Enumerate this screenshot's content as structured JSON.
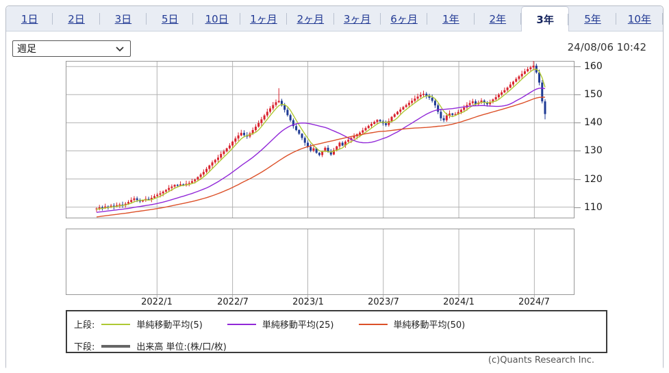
{
  "tabs": {
    "active_index": 11,
    "items": [
      {
        "label": "1日"
      },
      {
        "label": "2日"
      },
      {
        "label": "3日"
      },
      {
        "label": "5日"
      },
      {
        "label": "10日"
      },
      {
        "label": "1ヶ月"
      },
      {
        "label": "2ヶ月"
      },
      {
        "label": "3ヶ月"
      },
      {
        "label": "6ヶ月"
      },
      {
        "label": "1年"
      },
      {
        "label": "2年"
      },
      {
        "label": "3年"
      },
      {
        "label": "5年"
      },
      {
        "label": "10年"
      }
    ]
  },
  "toolbar": {
    "timeframe": "週足",
    "timestamp": "24/08/06 10:42"
  },
  "chart_data": {
    "type": "candlestick",
    "title": "",
    "x_ticks": [
      "2022/1",
      "2022/7",
      "2023/1",
      "2023/7",
      "2024/1",
      "2024/7"
    ],
    "x_tick_weeks": [
      20.9,
      47.0,
      73.0,
      99.1,
      125.2,
      151.3
    ],
    "y_ticks": [
      160,
      150,
      140,
      130,
      120,
      110
    ],
    "ylim": [
      106,
      162
    ],
    "grid": true,
    "weeks": 156,
    "closes": [
      109.5,
      109.9,
      109.6,
      110.2,
      110.0,
      110.5,
      110.2,
      110.7,
      110.9,
      110.6,
      111.2,
      111.8,
      112.5,
      113.1,
      112.5,
      112.0,
      112.4,
      112.9,
      112.6,
      113.3,
      113.9,
      114.4,
      114.9,
      115.5,
      116.1,
      116.8,
      117.3,
      117.9,
      117.6,
      118.1,
      117.7,
      118.3,
      118.6,
      119.2,
      119.8,
      120.7,
      121.6,
      122.5,
      123.6,
      124.8,
      125.9,
      126.8,
      127.6,
      128.9,
      129.8,
      130.9,
      131.9,
      133.3,
      134.4,
      135.5,
      136.4,
      135.6,
      135.1,
      136.2,
      137.4,
      138.6,
      139.9,
      141.2,
      142.6,
      143.9,
      145.1,
      146.3,
      147.3,
      147.8,
      146.2,
      144.6,
      142.7,
      140.9,
      138.8,
      137.4,
      136.1,
      134.6,
      132.9,
      131.4,
      130.1,
      130.9,
      129.3,
      128.5,
      129.9,
      131.1,
      129.6,
      128.7,
      130.3,
      131.6,
      132.9,
      131.9,
      133.3,
      133.9,
      134.6,
      135.2,
      135.9,
      136.5,
      137.3,
      138.1,
      138.9,
      139.6,
      140.3,
      141.0,
      140.5,
      139.8,
      139.2,
      140.6,
      142.1,
      143.0,
      143.9,
      144.7,
      145.6,
      146.3,
      147.1,
      147.8,
      148.6,
      149.3,
      149.9,
      150.3,
      149.6,
      148.9,
      147.8,
      146.2,
      143.9,
      141.6,
      140.9,
      142.6,
      143.3,
      142.8,
      143.1,
      143.8,
      144.6,
      145.4,
      146.3,
      147.0,
      147.6,
      146.6,
      147.2,
      147.9,
      147.1,
      146.6,
      147.4,
      148.3,
      149.1,
      150.0,
      150.8,
      151.6,
      152.5,
      153.6,
      154.6,
      155.6,
      156.5,
      157.4,
      158.3,
      159.1,
      159.7,
      160.3,
      157.9,
      154.3,
      147.6,
      143.1
    ],
    "pre_closes": [
      103.2,
      103.4,
      103.3,
      103.6,
      103.8,
      103.7,
      104.0,
      104.2,
      104.1,
      104.4,
      104.6,
      104.5,
      104.8,
      105.0,
      104.9,
      105.2,
      105.4,
      105.3,
      105.6,
      105.8,
      105.7,
      106.0,
      106.2,
      106.1,
      106.4,
      106.6,
      106.5,
      106.8,
      107.0,
      106.9,
      107.2,
      107.4,
      107.3,
      107.6,
      107.8,
      107.7,
      108.0,
      108.2,
      108.1,
      108.4,
      108.5,
      108.4,
      108.7,
      108.8,
      108.7,
      109.0,
      109.1,
      109.0,
      109.2,
      109.3
    ],
    "wick_overrides": [
      {
        "i": 63,
        "high": 152.3
      },
      {
        "i": 113,
        "high": 151.4
      },
      {
        "i": 151,
        "high": 162.3
      },
      {
        "i": 155,
        "low": 141.2
      }
    ],
    "series": [
      {
        "name": "単純移動平均(5)",
        "period": 5,
        "color_key": "ma5"
      },
      {
        "name": "単純移動平均(25)",
        "period": 25,
        "color_key": "ma25"
      },
      {
        "name": "単純移動平均(50)",
        "period": 50,
        "color_key": "ma50"
      }
    ],
    "colors": {
      "up": "#d8232e",
      "down": "#1e3a94",
      "ma5": "#aec832",
      "ma25": "#9128d8",
      "ma50": "#dc5028",
      "grid": "#b3b3b3",
      "panel_border": "#979797"
    }
  },
  "legend": {
    "upper_label": "上段:",
    "upper_items": [
      {
        "label": "単純移動平均(5)",
        "color": "#aec832"
      },
      {
        "label": "単純移動平均(25)",
        "color": "#9128d8"
      },
      {
        "label": "単純移動平均(50)",
        "color": "#dc5028"
      }
    ],
    "lower_label": "下段:",
    "lower_item": {
      "label": "出来高 単位:(株/口/枚)",
      "color": "#666666"
    }
  },
  "footer": {
    "copyright": "(c)Quants Research Inc."
  }
}
